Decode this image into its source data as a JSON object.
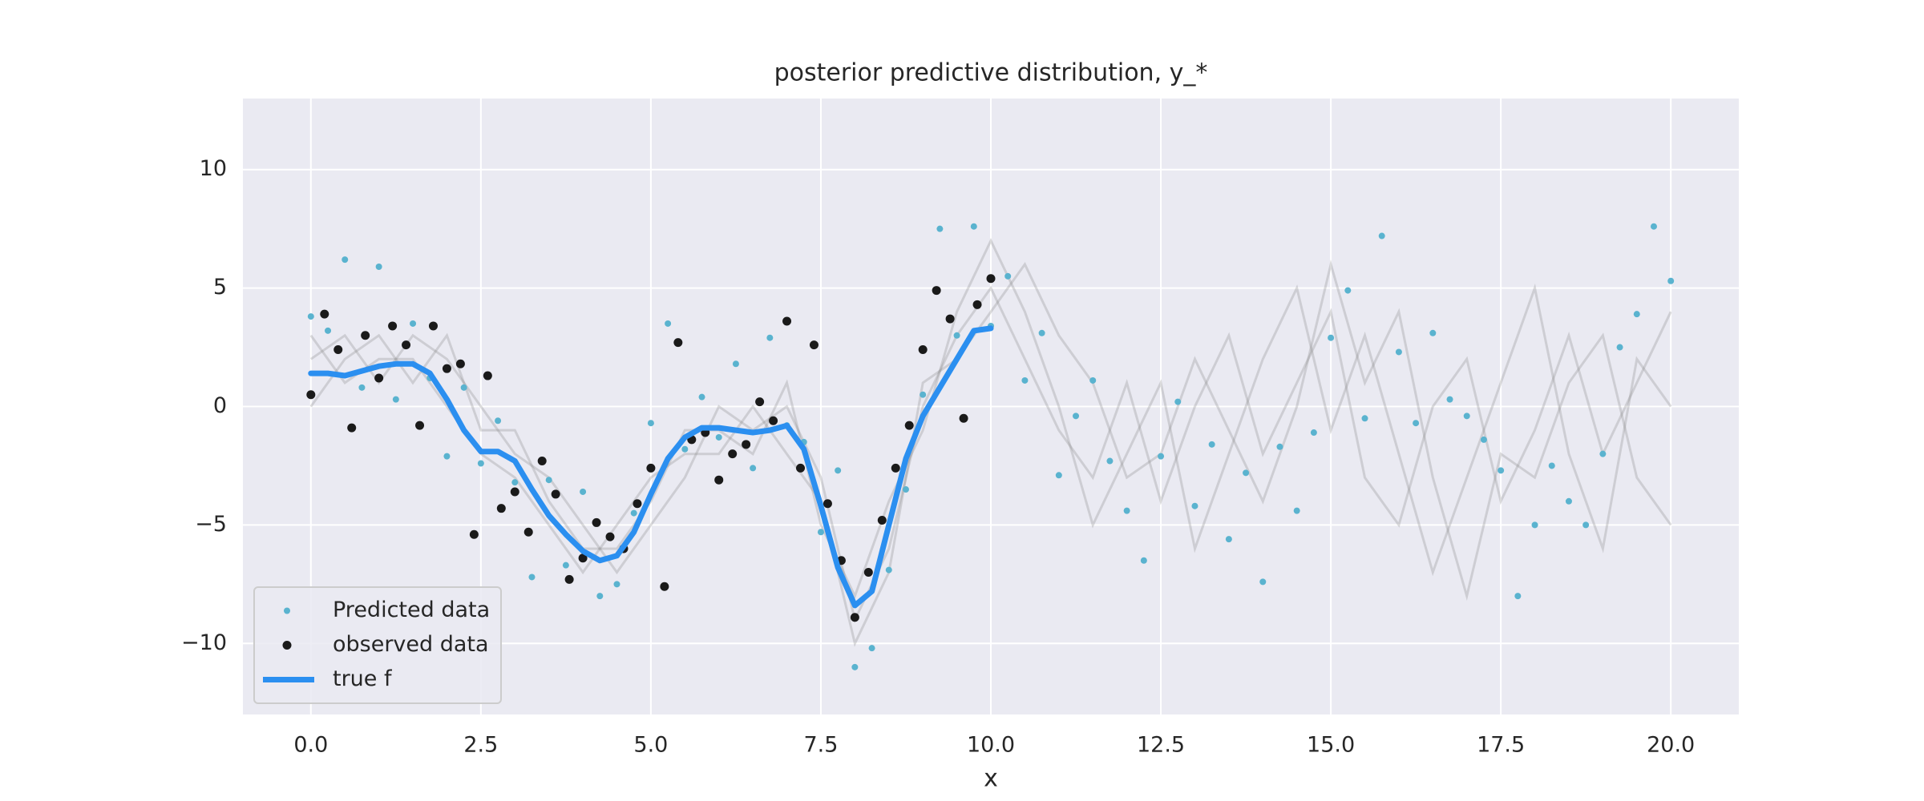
{
  "chart_data": {
    "type": "scatter",
    "title": "posterior predictive distribution, y_*",
    "xlabel": "x",
    "xlim": [
      -1,
      21
    ],
    "ylim": [
      -13,
      13
    ],
    "xticks": [
      {
        "value": 0,
        "label": "0.0"
      },
      {
        "value": 2.5,
        "label": "2.5"
      },
      {
        "value": 5,
        "label": "5.0"
      },
      {
        "value": 7.5,
        "label": "7.5"
      },
      {
        "value": 10,
        "label": "10.0"
      },
      {
        "value": 12.5,
        "label": "12.5"
      },
      {
        "value": 15,
        "label": "15.0"
      },
      {
        "value": 17.5,
        "label": "17.5"
      },
      {
        "value": 20,
        "label": "20.0"
      }
    ],
    "yticks": [
      {
        "value": -10,
        "label": "−10"
      },
      {
        "value": -5,
        "label": "−5"
      },
      0,
      5,
      10
    ],
    "grid": true,
    "background": "#eaeaf2",
    "legend": "lower left",
    "samples": {
      "color": "#8c8c8c",
      "x": [
        0,
        0.5,
        1,
        1.5,
        2,
        2.5,
        3,
        3.5,
        4,
        4.5,
        5,
        5.5,
        6,
        6.5,
        7,
        7.5,
        8,
        8.5,
        9,
        9.5,
        10,
        10.5,
        11,
        11.5,
        12,
        12.5,
        13,
        13.5,
        14,
        14.5,
        15,
        15.5,
        16,
        16.5,
        17,
        17.5,
        18,
        18.5,
        19,
        19.5,
        20
      ],
      "values": [
        [
          2,
          3,
          1,
          3,
          2,
          0,
          -2,
          -3,
          -5,
          -7,
          -5,
          -3,
          0,
          -1,
          0,
          -3,
          -9,
          -6,
          0,
          3,
          5,
          2,
          -1,
          -3,
          1,
          -4,
          0,
          3,
          -2,
          1,
          4,
          -3,
          -5,
          0,
          2,
          -4,
          -1,
          3,
          -2,
          1,
          4
        ],
        [
          0,
          2,
          3,
          1,
          3,
          -1,
          -1,
          -4,
          -6,
          -6,
          -4,
          -1,
          -1,
          -2,
          1,
          -5,
          -8,
          -4,
          -1,
          4,
          7,
          4,
          0,
          -5,
          -2,
          1,
          -6,
          -2,
          2,
          5,
          -1,
          3,
          -2,
          -7,
          -3,
          1,
          5,
          -2,
          -6,
          2,
          0
        ],
        [
          3,
          1,
          2,
          2,
          0,
          -2,
          -3,
          -5,
          -7,
          -5,
          -3,
          -2,
          -2,
          0,
          -2,
          -4,
          -10,
          -7,
          1,
          2,
          4,
          6,
          3,
          1,
          -3,
          -2,
          2,
          -1,
          -4,
          0,
          6,
          1,
          4,
          -3,
          -8,
          -2,
          -3,
          1,
          3,
          -3,
          -5
        ]
      ]
    },
    "series": [
      {
        "name": "Predicted data",
        "type": "scatter",
        "color": "#5ab3cf",
        "x": [
          0,
          0.25,
          0.5,
          0.75,
          1,
          1.25,
          1.5,
          1.75,
          2,
          2.25,
          2.5,
          2.75,
          3,
          3.25,
          3.5,
          3.75,
          4,
          4.25,
          4.5,
          4.75,
          5,
          5.25,
          5.5,
          5.75,
          6,
          6.25,
          6.5,
          6.75,
          7,
          7.25,
          7.5,
          7.75,
          8,
          8.25,
          8.5,
          8.75,
          9,
          9.25,
          9.5,
          9.75,
          10,
          10.25,
          10.5,
          10.75,
          11,
          11.25,
          11.5,
          11.75,
          12,
          12.25,
          12.5,
          12.75,
          13,
          13.25,
          13.5,
          13.75,
          14,
          14.25,
          14.5,
          14.75,
          15,
          15.25,
          15.5,
          15.75,
          16,
          16.25,
          16.5,
          16.75,
          17,
          17.25,
          17.5,
          17.75,
          18,
          18.25,
          18.5,
          18.75,
          19,
          19.25,
          19.5,
          19.75,
          20
        ],
        "values": [
          3.8,
          3.2,
          6.2,
          0.8,
          5.9,
          0.3,
          3.5,
          1.2,
          -2.1,
          0.8,
          -2.4,
          -0.6,
          -3.2,
          -7.2,
          -3.1,
          -6.7,
          -3.6,
          -8.0,
          -7.5,
          -4.5,
          -0.7,
          3.5,
          -1.8,
          0.4,
          -1.3,
          1.8,
          -2.6,
          2.9,
          -0.8,
          -1.5,
          -5.3,
          -2.7,
          -11.0,
          -10.2,
          -6.9,
          -3.5,
          0.5,
          7.5,
          3.0,
          7.6,
          3.4,
          5.5,
          1.1,
          3.1,
          -2.9,
          -0.4,
          1.1,
          -2.3,
          -4.4,
          -6.5,
          -2.1,
          0.2,
          -4.2,
          -1.6,
          -5.6,
          -2.8,
          -7.4,
          -1.7,
          -4.4,
          -1.1,
          2.9,
          4.9,
          -0.5,
          7.2,
          2.3,
          -0.7,
          3.1,
          0.3,
          -0.4,
          -1.4,
          -2.7,
          -8.0,
          -5.0,
          -2.5,
          -4.0,
          -5.0,
          -2.0,
          2.5,
          3.9,
          7.6,
          5.3
        ]
      },
      {
        "name": "observed data",
        "type": "scatter",
        "color": "#1a1a1a",
        "x": [
          0,
          0.2,
          0.4,
          0.6,
          0.8,
          1,
          1.2,
          1.4,
          1.6,
          1.8,
          2,
          2.2,
          2.4,
          2.6,
          2.8,
          3,
          3.2,
          3.4,
          3.6,
          3.8,
          4,
          4.2,
          4.4,
          4.6,
          4.8,
          5,
          5.2,
          5.4,
          5.6,
          5.8,
          6,
          6.2,
          6.4,
          6.6,
          6.8,
          7,
          7.2,
          7.4,
          7.6,
          7.8,
          8,
          8.2,
          8.4,
          8.6,
          8.8,
          9,
          9.2,
          9.4,
          9.6,
          9.8,
          10
        ],
        "values": [
          0.5,
          3.9,
          2.4,
          -0.9,
          3.0,
          1.2,
          3.4,
          2.6,
          -0.8,
          3.4,
          1.6,
          1.8,
          -5.4,
          1.3,
          -4.3,
          -3.6,
          -5.3,
          -2.3,
          -3.7,
          -7.3,
          -6.4,
          -4.9,
          -5.5,
          -6.0,
          -4.1,
          -2.6,
          -7.6,
          2.7,
          -1.4,
          -1.1,
          -3.1,
          -2.0,
          -1.6,
          0.2,
          -0.6,
          3.6,
          -2.6,
          2.6,
          -4.1,
          -6.5,
          -8.9,
          -7.0,
          -4.8,
          -2.6,
          -0.8,
          2.4,
          4.9,
          3.7,
          -0.5,
          4.3,
          5.4
        ]
      },
      {
        "name": "true f",
        "type": "line",
        "color": "#2b8ff0",
        "x": [
          0,
          0.25,
          0.5,
          0.75,
          1,
          1.25,
          1.5,
          1.75,
          2,
          2.25,
          2.5,
          2.75,
          3,
          3.25,
          3.5,
          3.75,
          4,
          4.25,
          4.5,
          4.75,
          5,
          5.25,
          5.5,
          5.75,
          6,
          6.25,
          6.5,
          6.75,
          7,
          7.25,
          7.5,
          7.75,
          8,
          8.25,
          8.5,
          8.75,
          9,
          9.25,
          9.5,
          9.75,
          10
        ],
        "values": [
          1.4,
          1.4,
          1.3,
          1.5,
          1.7,
          1.8,
          1.8,
          1.4,
          0.3,
          -1.0,
          -1.9,
          -1.9,
          -2.3,
          -3.5,
          -4.6,
          -5.4,
          -6.1,
          -6.5,
          -6.3,
          -5.3,
          -3.7,
          -2.2,
          -1.3,
          -0.9,
          -0.9,
          -1.0,
          -1.1,
          -1.0,
          -0.8,
          -1.8,
          -4.2,
          -6.8,
          -8.4,
          -7.8,
          -5.0,
          -2.2,
          -0.4,
          0.8,
          2.0,
          3.2,
          3.3
        ]
      }
    ]
  }
}
